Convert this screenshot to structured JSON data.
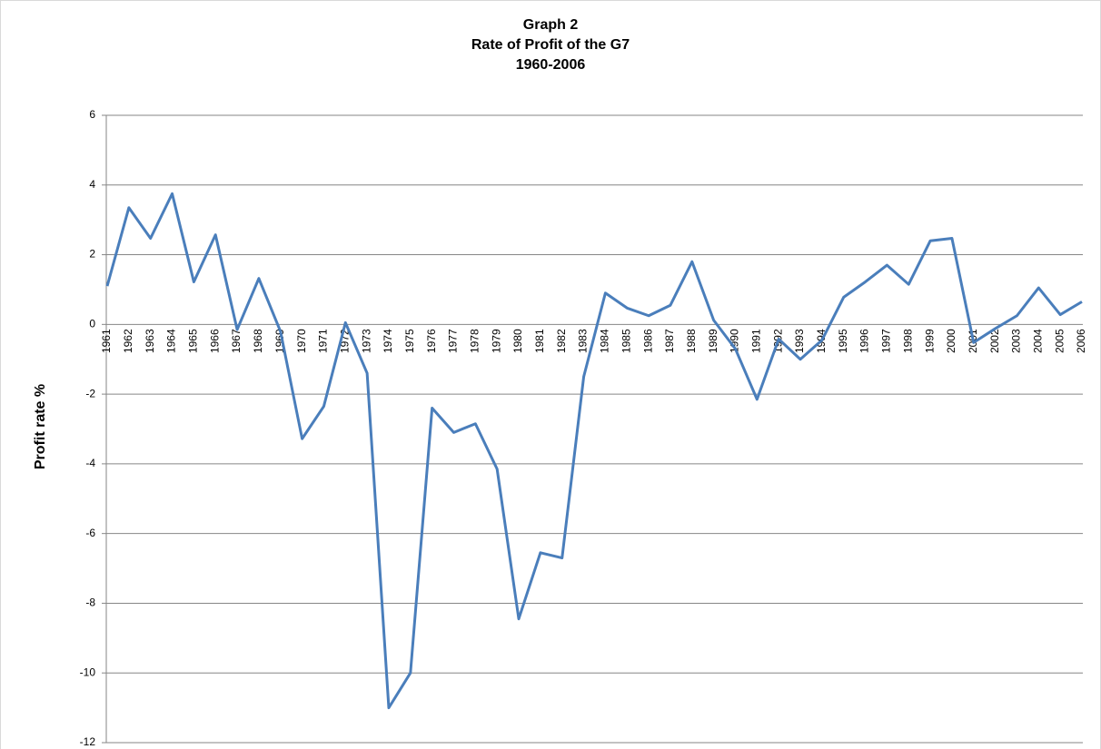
{
  "chart_data": {
    "type": "line",
    "title_lines": [
      "Graph 2",
      "Rate of Profit of the G7",
      "1960-2006"
    ],
    "y_label": "Profit rate %",
    "categories": [
      "1961",
      "1962",
      "1963",
      "1964",
      "1965",
      "1966",
      "1967",
      "1968",
      "1969",
      "1970",
      "1971",
      "1972",
      "1973",
      "1974",
      "1975",
      "1976",
      "1977",
      "1978",
      "1979",
      "1980",
      "1981",
      "1982",
      "1983",
      "1984",
      "1985",
      "1986",
      "1987",
      "1988",
      "1989",
      "1990",
      "1991",
      "1992",
      "1993",
      "1994",
      "1995",
      "1996",
      "1997",
      "1998",
      "1999",
      "2000",
      "2001",
      "2002",
      "2003",
      "2004",
      "2005",
      "2006"
    ],
    "series": [
      {
        "color": "#4a7ebb",
        "values": [
          1.1,
          3.35,
          2.47,
          3.75,
          1.22,
          2.57,
          -0.15,
          1.32,
          -0.2,
          -3.28,
          -2.35,
          0.05,
          -1.4,
          -11.0,
          -10.0,
          -2.4,
          -3.1,
          -2.85,
          -4.15,
          -8.45,
          -6.55,
          -6.7,
          -1.5,
          0.9,
          0.47,
          0.25,
          0.55,
          1.8,
          0.12,
          -0.7,
          -2.15,
          -0.42,
          -1.0,
          -0.45,
          0.78,
          1.22,
          1.7,
          1.15,
          2.4,
          2.47,
          -0.52,
          -0.12,
          0.25,
          1.05,
          0.28,
          0.65
        ]
      }
    ],
    "ylim": [
      -12,
      6
    ],
    "yticks": [
      -12,
      -10,
      -8,
      -6,
      -4,
      -2,
      0,
      2,
      4,
      6
    ],
    "grid": true
  }
}
